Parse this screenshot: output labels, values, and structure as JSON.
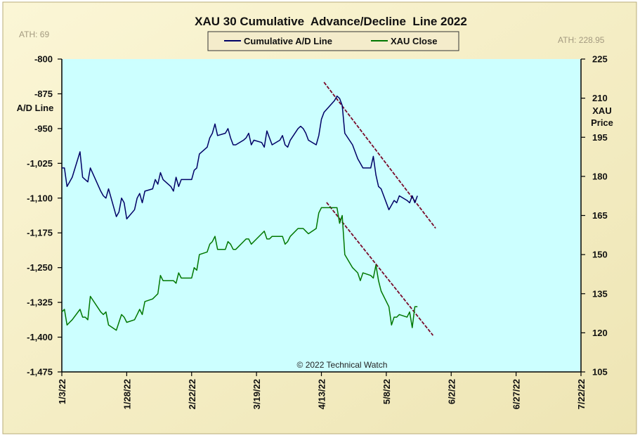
{
  "chart_data": {
    "type": "line",
    "title": "XAU 30 Cumulative  Advance/Decline  Line 2022",
    "ylabel_left": "A/D Line",
    "ylabel_right_line1": "XAU",
    "ylabel_right_line2": "Price",
    "ath_left": "ATH: 69",
    "ath_right": "ATH: 228.95",
    "copyright": "© 2022 Technical Watch",
    "legend": {
      "placement": "top-center",
      "items": [
        "Cumulative A/D Line",
        "XAU Close"
      ]
    },
    "grid": false,
    "x_range": [
      "2022-01-03",
      "2022-07-22"
    ],
    "x_ticks": [
      "1/3/22",
      "1/28/22",
      "2/22/22",
      "3/19/22",
      "4/13/22",
      "5/8/22",
      "6/2/22",
      "6/27/22",
      "7/22/22"
    ],
    "y_left": {
      "min": -1475,
      "max": -800,
      "ticks": [
        "-800",
        "-875",
        "-950",
        "-1,025",
        "-1,100",
        "-1,175",
        "-1,250",
        "-1,325",
        "-1,400",
        "-1,475"
      ]
    },
    "y_right": {
      "min": 105,
      "max": 225,
      "ticks": [
        "225",
        "210",
        "195",
        "180",
        "165",
        "150",
        "135",
        "120",
        "105"
      ]
    },
    "colors": {
      "ad_line": "#000066",
      "xau": "#007700",
      "trend": "#7a0a2a",
      "plot_bg": "#ccffff",
      "panel_bg": "#f6f0c4"
    },
    "series": [
      {
        "name": "Cumulative A/D Line",
        "axis": "left",
        "x": [
          "2022-01-03",
          "2022-01-04",
          "2022-01-05",
          "2022-01-06",
          "2022-01-07",
          "2022-01-10",
          "2022-01-11",
          "2022-01-12",
          "2022-01-13",
          "2022-01-14",
          "2022-01-18",
          "2022-01-19",
          "2022-01-20",
          "2022-01-21",
          "2022-01-24",
          "2022-01-25",
          "2022-01-26",
          "2022-01-27",
          "2022-01-28",
          "2022-01-31",
          "2022-02-01",
          "2022-02-02",
          "2022-02-03",
          "2022-02-04",
          "2022-02-07",
          "2022-02-08",
          "2022-02-09",
          "2022-02-10",
          "2022-02-11",
          "2022-02-14",
          "2022-02-15",
          "2022-02-16",
          "2022-02-17",
          "2022-02-18",
          "2022-02-22",
          "2022-02-23",
          "2022-02-24",
          "2022-02-25",
          "2022-02-28",
          "2022-03-01",
          "2022-03-02",
          "2022-03-03",
          "2022-03-04",
          "2022-03-07",
          "2022-03-08",
          "2022-03-09",
          "2022-03-10",
          "2022-03-11",
          "2022-03-14",
          "2022-03-15",
          "2022-03-16",
          "2022-03-17",
          "2022-03-18",
          "2022-03-21",
          "2022-03-22",
          "2022-03-23",
          "2022-03-24",
          "2022-03-25",
          "2022-03-28",
          "2022-03-29",
          "2022-03-30",
          "2022-03-31",
          "2022-04-01",
          "2022-04-04",
          "2022-04-05",
          "2022-04-06",
          "2022-04-07",
          "2022-04-08",
          "2022-04-11",
          "2022-04-12",
          "2022-04-13",
          "2022-04-14",
          "2022-04-18",
          "2022-04-19",
          "2022-04-20",
          "2022-04-21",
          "2022-04-22",
          "2022-04-25",
          "2022-04-26",
          "2022-04-27",
          "2022-04-28",
          "2022-04-29",
          "2022-05-02",
          "2022-05-03",
          "2022-05-04",
          "2022-05-05",
          "2022-05-06",
          "2022-05-09",
          "2022-05-10",
          "2022-05-11",
          "2022-05-12",
          "2022-05-13",
          "2022-05-16",
          "2022-05-17",
          "2022-05-18",
          "2022-05-19",
          "2022-05-20"
        ],
        "values": [
          -1035,
          -1035,
          -1075,
          -1065,
          -1055,
          -1000,
          -1055,
          -1060,
          -1065,
          -1035,
          -1085,
          -1095,
          -1100,
          -1080,
          -1140,
          -1130,
          -1100,
          -1110,
          -1145,
          -1125,
          -1100,
          -1090,
          -1110,
          -1085,
          -1080,
          -1060,
          -1070,
          -1045,
          -1060,
          -1075,
          -1085,
          -1055,
          -1075,
          -1060,
          -1060,
          -1040,
          -1035,
          -1005,
          -990,
          -970,
          -960,
          -940,
          -965,
          -960,
          -950,
          -970,
          -985,
          -985,
          -975,
          -970,
          -960,
          -985,
          -975,
          -980,
          -990,
          -955,
          -970,
          -985,
          -975,
          -965,
          -985,
          -990,
          -975,
          -950,
          -945,
          -950,
          -960,
          -975,
          -985,
          -965,
          -930,
          -915,
          -890,
          -880,
          -885,
          -900,
          -960,
          -985,
          -1000,
          -1015,
          -1025,
          -1035,
          -1035,
          -1010,
          -1050,
          -1075,
          -1080,
          -1125,
          -1115,
          -1105,
          -1110,
          -1095,
          -1105,
          -1110,
          -1095,
          -1110,
          -1095
        ]
      },
      {
        "name": "XAU Close",
        "axis": "right",
        "x": [
          "2022-01-03",
          "2022-01-04",
          "2022-01-05",
          "2022-01-06",
          "2022-01-07",
          "2022-01-10",
          "2022-01-11",
          "2022-01-12",
          "2022-01-13",
          "2022-01-14",
          "2022-01-18",
          "2022-01-19",
          "2022-01-20",
          "2022-01-21",
          "2022-01-24",
          "2022-01-25",
          "2022-01-26",
          "2022-01-27",
          "2022-01-28",
          "2022-01-31",
          "2022-02-01",
          "2022-02-02",
          "2022-02-03",
          "2022-02-04",
          "2022-02-07",
          "2022-02-08",
          "2022-02-09",
          "2022-02-10",
          "2022-02-11",
          "2022-02-14",
          "2022-02-15",
          "2022-02-16",
          "2022-02-17",
          "2022-02-18",
          "2022-02-22",
          "2022-02-23",
          "2022-02-24",
          "2022-02-25",
          "2022-02-28",
          "2022-03-01",
          "2022-03-02",
          "2022-03-03",
          "2022-03-04",
          "2022-03-07",
          "2022-03-08",
          "2022-03-09",
          "2022-03-10",
          "2022-03-11",
          "2022-03-14",
          "2022-03-15",
          "2022-03-16",
          "2022-03-17",
          "2022-03-18",
          "2022-03-21",
          "2022-03-22",
          "2022-03-23",
          "2022-03-24",
          "2022-03-25",
          "2022-03-28",
          "2022-03-29",
          "2022-03-30",
          "2022-03-31",
          "2022-04-01",
          "2022-04-04",
          "2022-04-05",
          "2022-04-06",
          "2022-04-07",
          "2022-04-08",
          "2022-04-11",
          "2022-04-12",
          "2022-04-13",
          "2022-04-14",
          "2022-04-18",
          "2022-04-19",
          "2022-04-20",
          "2022-04-21",
          "2022-04-22",
          "2022-04-25",
          "2022-04-26",
          "2022-04-27",
          "2022-04-28",
          "2022-04-29",
          "2022-05-02",
          "2022-05-03",
          "2022-05-04",
          "2022-05-05",
          "2022-05-06",
          "2022-05-09",
          "2022-05-10",
          "2022-05-11",
          "2022-05-12",
          "2022-05-13",
          "2022-05-16",
          "2022-05-17",
          "2022-05-18",
          "2022-05-19",
          "2022-05-20"
        ],
        "values": [
          128,
          129,
          123,
          124,
          125,
          129,
          126,
          126,
          125,
          134,
          128,
          127,
          128,
          123,
          121,
          124,
          127,
          126,
          124,
          125,
          127,
          129,
          127,
          132,
          133,
          134,
          135,
          142,
          140,
          140,
          140,
          139,
          143,
          141,
          141,
          145,
          144,
          150,
          151,
          154,
          155,
          157,
          152,
          152,
          155,
          154,
          152,
          152,
          155,
          156,
          156,
          154,
          155,
          158,
          159,
          156,
          156,
          157,
          157,
          157,
          154,
          155,
          157,
          160,
          160,
          160,
          159,
          158,
          160,
          166,
          168,
          168,
          168,
          168,
          162,
          165,
          150,
          145,
          144,
          143,
          140,
          143,
          142,
          141,
          146,
          140,
          136,
          130,
          123,
          126,
          126,
          127,
          126,
          128,
          122,
          130,
          130
        ]
      }
    ],
    "trendlines": [
      {
        "axis": "left",
        "from": {
          "x": "2022-04-14",
          "y": -850
        },
        "to": {
          "x": "2022-05-27",
          "y": -1165
        }
      },
      {
        "axis": "right",
        "from": {
          "x": "2022-04-15",
          "y": 170
        },
        "to": {
          "x": "2022-05-26",
          "y": 119
        }
      }
    ]
  }
}
